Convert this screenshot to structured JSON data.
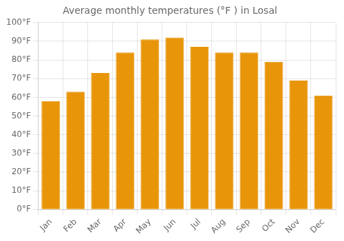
{
  "chart_data": {
    "type": "bar",
    "title": "Average monthly temperatures (°F ) in Losal",
    "categories": [
      "Jan",
      "Feb",
      "Mar",
      "Apr",
      "May",
      "Jun",
      "Jul",
      "Aug",
      "Sep",
      "Oct",
      "Nov",
      "Dec"
    ],
    "values": [
      58,
      63,
      73,
      84,
      91,
      92,
      87,
      84,
      84,
      79,
      69,
      61
    ],
    "color": "#E8950A",
    "ylim": [
      0,
      100
    ],
    "yticks": [
      {
        "value": 0,
        "label": "0°F"
      },
      {
        "value": 10,
        "label": "10°F"
      },
      {
        "value": 20,
        "label": "20°F"
      },
      {
        "value": 30,
        "label": "30°F"
      },
      {
        "value": 40,
        "label": "40°F"
      },
      {
        "value": 50,
        "label": "50°F"
      },
      {
        "value": 60,
        "label": "60°F"
      },
      {
        "value": 70,
        "label": "70°F"
      },
      {
        "value": 80,
        "label": "80°F"
      },
      {
        "value": 90,
        "label": "90°F"
      },
      {
        "value": 100,
        "label": "100°F"
      }
    ],
    "grid": true
  }
}
